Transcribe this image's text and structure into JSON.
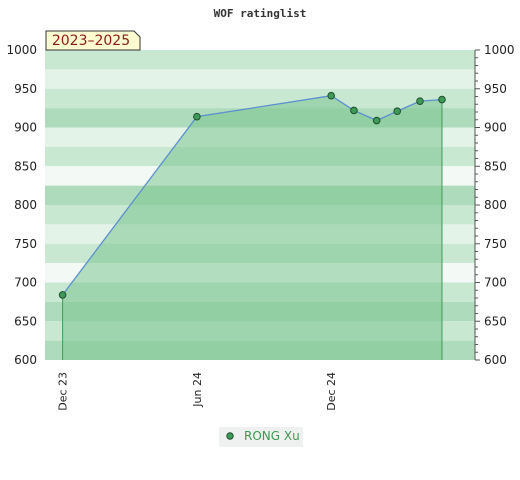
{
  "chart_data": {
    "type": "area",
    "title": "WOF ratinglist",
    "badge": "2023–2025",
    "x_ticks": [
      {
        "label": "Dec 23",
        "date": "2023-12-01"
      },
      {
        "label": "Jun 24",
        "date": "2024-06-01"
      },
      {
        "label": "Dec 24",
        "date": "2024-12-01"
      }
    ],
    "x_range": [
      "2023-11-07",
      "2025-06-15"
    ],
    "ylim": [
      600,
      1000
    ],
    "y_ticks": [
      600,
      650,
      700,
      750,
      800,
      850,
      900,
      950,
      1000
    ],
    "series": [
      {
        "name": "RONG Xu",
        "x": [
          "2023-12-01",
          "2024-06-01",
          "2024-12-01",
          "2025-01-01",
          "2025-02-01",
          "2025-03-01",
          "2025-04-01",
          "2025-05-01"
        ],
        "y": [
          684,
          914,
          941,
          922,
          909,
          921,
          934,
          936
        ]
      }
    ],
    "legend_position": "bottom-center",
    "colors": {
      "line": "#5a8fd0",
      "fill": "#7cc48f",
      "point": "#3f9a5a",
      "band_dark": "#aedbbb",
      "band_mid": "#c9e8d2",
      "band_light": "#e4f3e8",
      "band_lightest": "#f3faf5",
      "badge_bg": "#fffbd0",
      "legend_bg": "#eef1ef"
    }
  }
}
